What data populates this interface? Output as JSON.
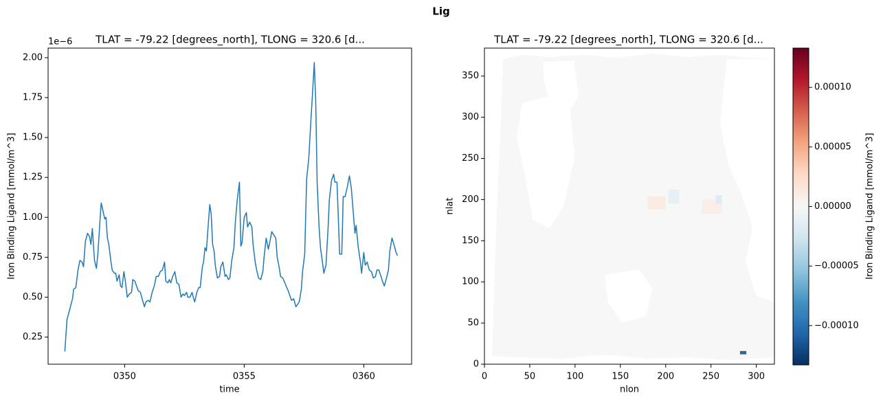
{
  "suptitle": "Lig",
  "chart_data": [
    {
      "type": "line",
      "title": "TLAT = -79.22 [degrees_north], TLONG = 320.6 [d...",
      "xlabel": "time",
      "ylabel": "Iron Binding Ligand [mmol/m^3]",
      "offset_text": "1e−6",
      "color": "#1f77b4",
      "xlim": [
        346.8,
        362.0
      ],
      "ylim": [
        0.08,
        2.06
      ],
      "xticks": [
        {
          "value": 350,
          "label": "0350"
        },
        {
          "value": 355,
          "label": "0355"
        },
        {
          "value": 360,
          "label": "0360"
        }
      ],
      "yticks": [
        0.25,
        {
          "value": 0.5,
          "label": "0.50"
        },
        0.75,
        {
          "value": 1,
          "label": "1.00"
        },
        1.25,
        {
          "value": 1.5,
          "label": "1.50"
        },
        1.75,
        {
          "value": 2,
          "label": "2.00"
        }
      ],
      "x": [
        347.5,
        347.59,
        347.7,
        347.82,
        347.87,
        347.96,
        348.05,
        348.13,
        348.22,
        348.28,
        348.36,
        348.45,
        348.53,
        348.59,
        348.65,
        348.74,
        348.82,
        348.88,
        348.97,
        349.02,
        349.11,
        349.17,
        349.22,
        349.28,
        349.34,
        349.43,
        349.48,
        349.57,
        349.63,
        349.68,
        349.77,
        349.83,
        349.89,
        349.97,
        350.03,
        350.11,
        350.2,
        350.29,
        350.34,
        350.43,
        350.52,
        350.57,
        350.66,
        350.75,
        350.83,
        350.89,
        350.98,
        351.06,
        351.15,
        351.24,
        351.32,
        351.41,
        351.49,
        351.58,
        351.67,
        351.72,
        351.81,
        351.87,
        351.93,
        352.01,
        352.1,
        352.18,
        352.27,
        352.36,
        352.44,
        352.5,
        352.59,
        352.64,
        352.73,
        352.82,
        352.87,
        352.93,
        353.02,
        353.1,
        353.16,
        353.25,
        353.3,
        353.36,
        353.42,
        353.48,
        353.56,
        353.62,
        353.68,
        353.74,
        353.79,
        353.88,
        353.97,
        354.02,
        354.11,
        354.2,
        354.25,
        354.34,
        354.4,
        354.48,
        354.57,
        354.63,
        354.71,
        354.8,
        354.86,
        354.91,
        355.0,
        355.09,
        355.14,
        355.23,
        355.32,
        355.37,
        355.46,
        355.52,
        355.6,
        355.69,
        355.78,
        355.83,
        355.92,
        356.01,
        356.09,
        356.15,
        356.24,
        356.32,
        356.38,
        356.47,
        356.52,
        356.61,
        356.7,
        356.75,
        356.84,
        356.93,
        356.98,
        357.07,
        357.16,
        357.21,
        357.3,
        357.39,
        357.44,
        357.53,
        357.61,
        357.7,
        357.79,
        357.87,
        357.93,
        357.99,
        358.05,
        358.13,
        358.19,
        358.28,
        358.33,
        358.42,
        358.51,
        358.56,
        358.65,
        358.74,
        358.79,
        358.88,
        358.94,
        358.99,
        359.08,
        359.14,
        359.22,
        359.31,
        359.4,
        359.48,
        359.54,
        359.63,
        359.68,
        359.77,
        359.86,
        359.91,
        360.0,
        360.06,
        360.14,
        360.23,
        360.32,
        360.4,
        360.49,
        360.55,
        360.63,
        360.72,
        360.78,
        360.86,
        360.95,
        361.03,
        361.09,
        361.18,
        361.26,
        361.35,
        361.41
      ],
      "values": [
        0.16,
        0.36,
        0.42,
        0.49,
        0.55,
        0.56,
        0.67,
        0.73,
        0.72,
        0.69,
        0.85,
        0.9,
        0.88,
        0.83,
        0.93,
        0.73,
        0.68,
        0.77,
        0.98,
        1.09,
        1.03,
        0.99,
        1.0,
        0.87,
        0.83,
        0.72,
        0.67,
        0.65,
        0.65,
        0.6,
        0.64,
        0.57,
        0.56,
        0.66,
        0.6,
        0.5,
        0.52,
        0.53,
        0.61,
        0.6,
        0.56,
        0.54,
        0.53,
        0.48,
        0.44,
        0.47,
        0.48,
        0.47,
        0.53,
        0.57,
        0.63,
        0.63,
        0.66,
        0.67,
        0.72,
        0.6,
        0.59,
        0.61,
        0.59,
        0.63,
        0.66,
        0.59,
        0.58,
        0.5,
        0.52,
        0.51,
        0.53,
        0.5,
        0.5,
        0.53,
        0.5,
        0.47,
        0.53,
        0.56,
        0.56,
        0.69,
        0.72,
        0.81,
        0.79,
        0.92,
        1.08,
        1.02,
        0.83,
        0.79,
        0.7,
        0.62,
        0.63,
        0.69,
        0.72,
        0.63,
        0.64,
        0.61,
        0.62,
        0.73,
        0.81,
        0.97,
        1.11,
        1.22,
        0.82,
        0.84,
        1.0,
        1.03,
        0.94,
        0.97,
        0.94,
        0.83,
        0.72,
        0.67,
        0.62,
        0.61,
        0.66,
        0.75,
        0.87,
        0.8,
        0.86,
        0.91,
        0.89,
        0.87,
        0.75,
        0.68,
        0.63,
        0.62,
        0.59,
        0.57,
        0.54,
        0.5,
        0.48,
        0.49,
        0.44,
        0.45,
        0.47,
        0.55,
        0.66,
        0.77,
        1.24,
        1.37,
        1.61,
        1.81,
        1.97,
        1.73,
        1.22,
        0.94,
        0.81,
        0.71,
        0.65,
        0.7,
        0.94,
        1.11,
        1.23,
        1.27,
        1.22,
        1.22,
        0.98,
        0.77,
        0.77,
        1.13,
        1.13,
        1.19,
        1.26,
        1.18,
        1.07,
        0.9,
        0.95,
        0.81,
        0.72,
        0.65,
        0.78,
        0.7,
        0.72,
        0.67,
        0.66,
        0.62,
        0.63,
        0.67,
        0.67,
        0.63,
        0.6,
        0.57,
        0.62,
        0.67,
        0.79,
        0.87,
        0.83,
        0.78,
        0.76
      ]
    },
    {
      "type": "heatmap",
      "title": "TLAT = -79.22 [degrees_north], TLONG = 320.6 [d...",
      "xlabel": "nlon",
      "ylabel": "nlat",
      "xlim": [
        0,
        320
      ],
      "ylim": [
        0,
        384
      ],
      "xticks": [
        0,
        50,
        100,
        150,
        200,
        250,
        300
      ],
      "yticks": [
        0,
        50,
        100,
        150,
        200,
        250,
        300,
        350
      ],
      "colormap": "RdBu_r",
      "background_value": 0,
      "cells": [
        {
          "nlon": [
            282,
            289
          ],
          "nlat": [
            12,
            16
          ],
          "value": -0.00012
        },
        {
          "nlon": [
            180,
            200
          ],
          "nlat": [
            188,
            204
          ],
          "value": 1.2e-05
        },
        {
          "nlon": [
            203,
            215
          ],
          "nlat": [
            195,
            212
          ],
          "value": -1.5e-05
        },
        {
          "nlon": [
            240,
            262
          ],
          "nlat": [
            183,
            200
          ],
          "value": 1e-05
        },
        {
          "nlon": [
            255,
            262
          ],
          "nlat": [
            195,
            205
          ],
          "value": -2e-05
        }
      ],
      "colorbar": {
        "label": "Iron Binding Ligand [mmol/m^3]",
        "lim": [
          -0.000133,
          0.000133
        ],
        "ticks": [
          {
            "value": -0.0001,
            "label": "−0.00010"
          },
          {
            "value": -5e-05,
            "label": "−0.00005"
          },
          {
            "value": 0,
            "label": "0.00000"
          },
          {
            "value": 5e-05,
            "label": "0.00005"
          },
          {
            "value": 0.0001,
            "label": "0.00010"
          }
        ]
      }
    }
  ]
}
